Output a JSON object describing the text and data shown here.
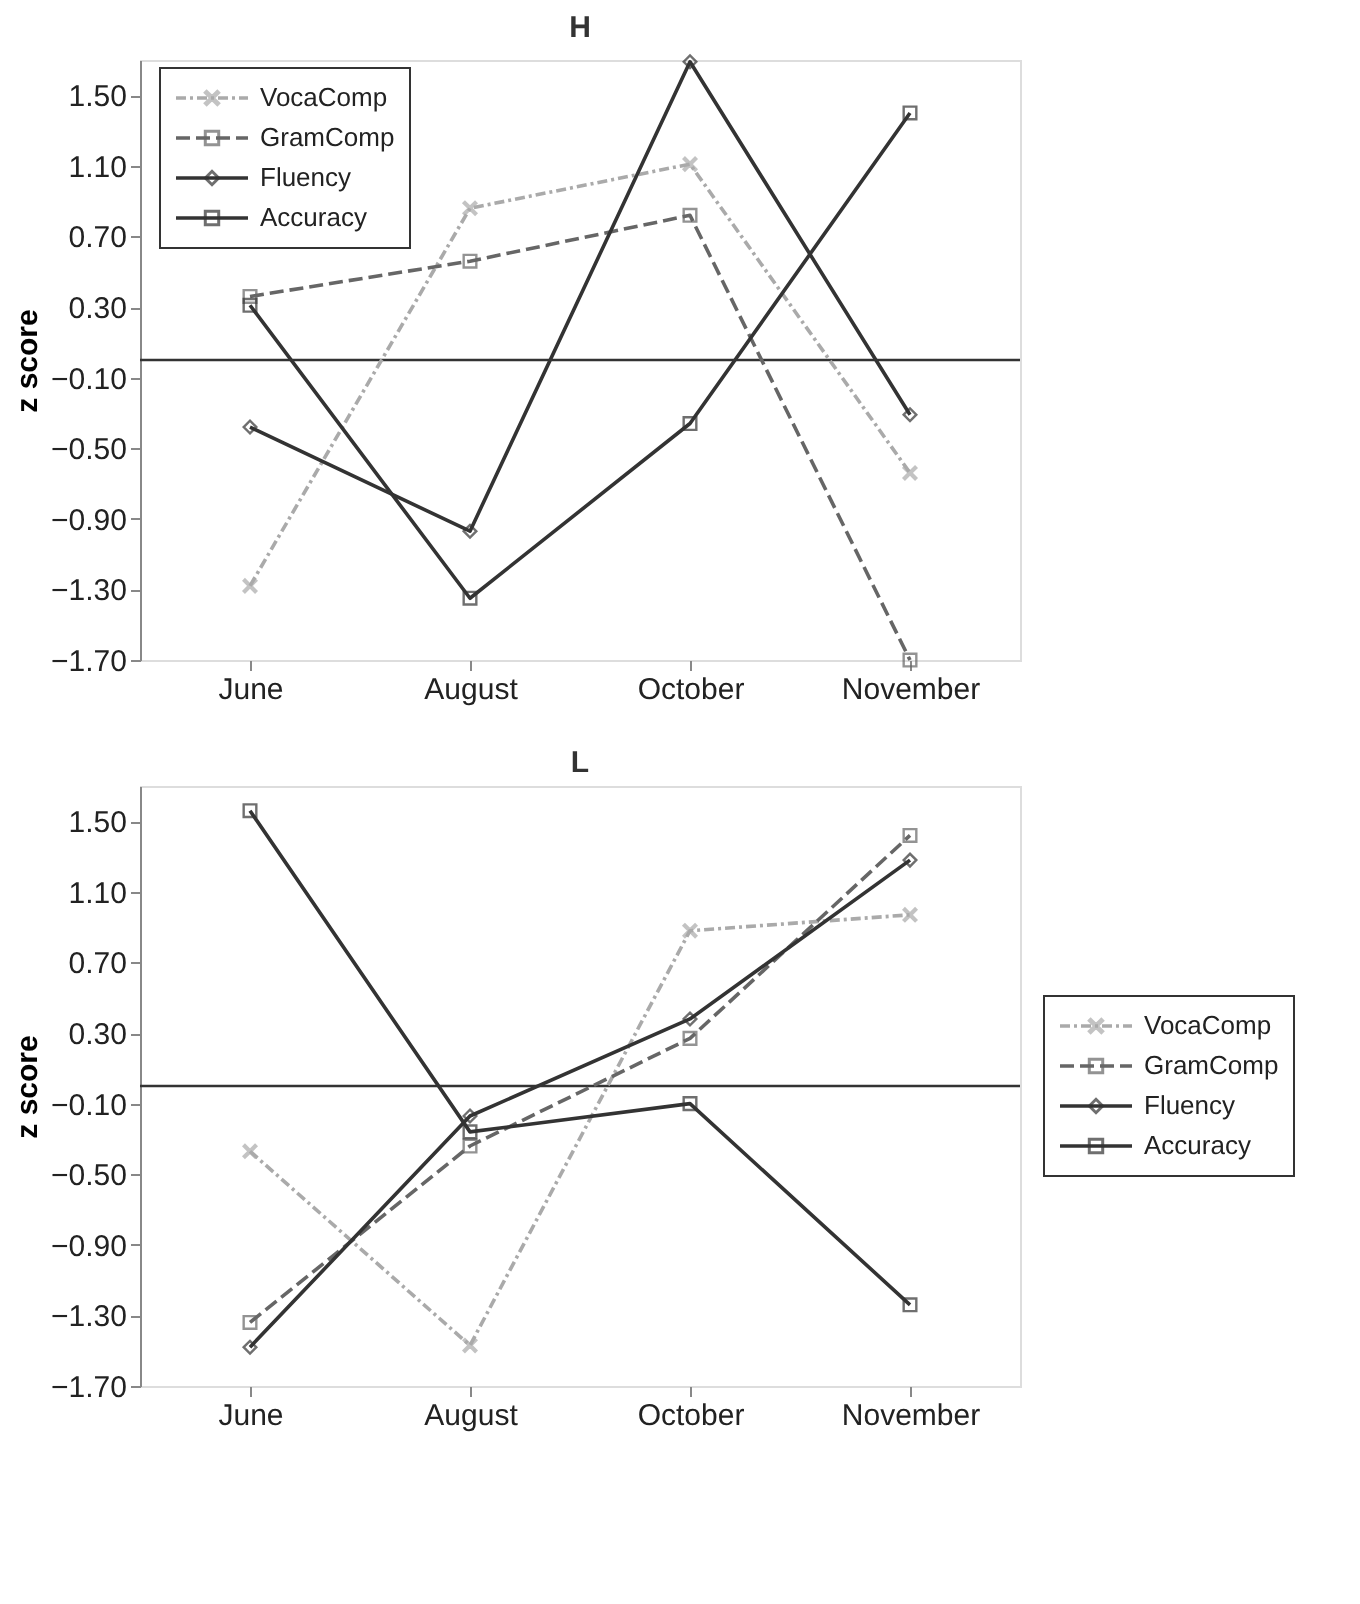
{
  "chart_data": [
    {
      "type": "line",
      "title": "H",
      "ylabel": "z score",
      "categories": [
        "June",
        "August",
        "October",
        "November"
      ],
      "series": [
        {
          "name": "VocaComp",
          "color": "#aaaaaa",
          "line_style": "dashdot",
          "marker": "cross",
          "values": [
            -1.28,
            0.86,
            1.11,
            -0.64
          ]
        },
        {
          "name": "GramComp",
          "color": "#666666",
          "line_style": "dashed",
          "marker": "square",
          "values": [
            0.36,
            0.56,
            0.82,
            -1.7
          ]
        },
        {
          "name": "Fluency",
          "color": "#333333",
          "line_style": "solid",
          "marker": "diamond",
          "values": [
            -0.38,
            -0.97,
            1.69,
            -0.31
          ]
        },
        {
          "name": "Accuracy",
          "color": "#333333",
          "line_style": "solid",
          "marker": "square",
          "values": [
            0.31,
            -1.35,
            -0.36,
            1.4
          ]
        }
      ],
      "ylim": [
        -1.7,
        1.7
      ],
      "yticks": [
        {
          "value": -1.7,
          "label": "−1.70"
        },
        {
          "value": -1.3,
          "label": "−1.30"
        },
        {
          "value": -0.9,
          "label": "−0.90"
        },
        {
          "value": -0.5,
          "label": "−0.50"
        },
        {
          "value": -0.1,
          "label": "−0.10"
        },
        {
          "value": 0.3,
          "label": "0.30"
        },
        {
          "value": 0.7,
          "label": "0.70"
        },
        {
          "value": 1.1,
          "label": "1.10"
        },
        {
          "value": 1.5,
          "label": "1.50"
        }
      ],
      "ref_lines": [
        {
          "axis": "y",
          "value": 0,
          "color": "#333333"
        }
      ],
      "grid": false,
      "legend": "top left"
    },
    {
      "type": "line",
      "title": "L",
      "ylabel": "z score",
      "categories": [
        "June",
        "August",
        "October",
        "November"
      ],
      "series": [
        {
          "name": "VocaComp",
          "color": "#aaaaaa",
          "line_style": "dashdot",
          "marker": "cross",
          "values": [
            -0.37,
            -1.47,
            0.88,
            0.97
          ]
        },
        {
          "name": "GramComp",
          "color": "#666666",
          "line_style": "dashed",
          "marker": "square",
          "values": [
            -1.34,
            -0.34,
            0.27,
            1.42
          ]
        },
        {
          "name": "Fluency",
          "color": "#333333",
          "line_style": "solid",
          "marker": "diamond",
          "values": [
            -1.48,
            -0.17,
            0.38,
            1.28
          ]
        },
        {
          "name": "Accuracy",
          "color": "#333333",
          "line_style": "solid",
          "marker": "square",
          "values": [
            1.56,
            -0.26,
            -0.1,
            -1.24
          ]
        }
      ],
      "ylim": [
        -1.7,
        1.7
      ],
      "yticks": [
        {
          "value": -1.7,
          "label": "−1.70"
        },
        {
          "value": -1.3,
          "label": "−1.30"
        },
        {
          "value": -0.9,
          "label": "−0.90"
        },
        {
          "value": -0.5,
          "label": "−0.50"
        },
        {
          "value": -0.1,
          "label": "−0.10"
        },
        {
          "value": 0.3,
          "label": "0.30"
        },
        {
          "value": 0.7,
          "label": "0.70"
        },
        {
          "value": 1.1,
          "label": "1.10"
        },
        {
          "value": 1.5,
          "label": "1.50"
        }
      ],
      "ref_lines": [
        {
          "axis": "y",
          "value": 0,
          "color": "#333333"
        }
      ],
      "grid": false,
      "legend": "right"
    }
  ]
}
